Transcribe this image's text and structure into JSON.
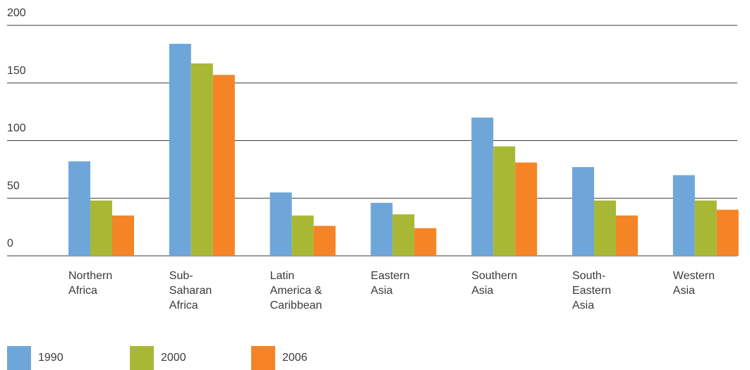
{
  "chart_data": {
    "type": "bar",
    "categories": [
      [
        "Northern",
        "Africa"
      ],
      [
        "Sub-",
        "Saharan",
        "Africa"
      ],
      [
        "Latin",
        "America &",
        "Caribbean"
      ],
      [
        "Eastern",
        "Asia"
      ],
      [
        "Southern",
        "Asia"
      ],
      [
        "South-",
        "Eastern",
        "Asia"
      ],
      [
        "Western",
        "Asia"
      ]
    ],
    "series": [
      {
        "name": "1990",
        "color": "#6fa6d9",
        "values": [
          82,
          184,
          55,
          46,
          120,
          77,
          70
        ]
      },
      {
        "name": "2000",
        "color": "#a9b834",
        "values": [
          48,
          167,
          35,
          36,
          95,
          48,
          48
        ]
      },
      {
        "name": "2006",
        "color": "#f58426",
        "values": [
          35,
          157,
          26,
          24,
          81,
          35,
          40
        ]
      }
    ],
    "ylim": [
      0,
      200
    ],
    "yticks": [
      0,
      50,
      100,
      150,
      200
    ],
    "grid": true,
    "legend_position": "bottom-left",
    "title": "",
    "xlabel": "",
    "ylabel": ""
  }
}
